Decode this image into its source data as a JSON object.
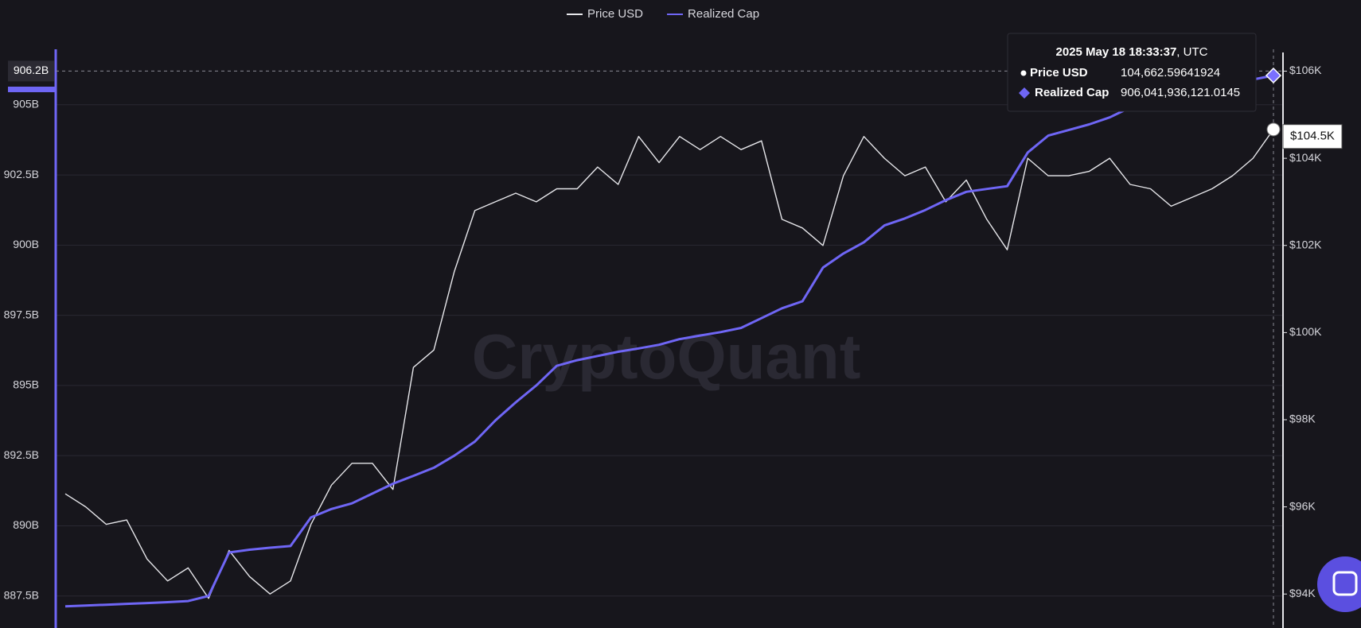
{
  "chart_data": {
    "type": "line",
    "watermark": "CryptoQuant",
    "ylim": [
      886.36,
      906.88
    ],
    "yticks": [
      {
        "value": 887.5,
        "label": "887.5B"
      },
      {
        "value": 890,
        "label": "890B"
      },
      {
        "value": 892.5,
        "label": "892.5B"
      },
      {
        "value": 895,
        "label": "895B"
      },
      {
        "value": 897.5,
        "label": "897.5B"
      },
      {
        "value": 900,
        "label": "900B"
      },
      {
        "value": 902.5,
        "label": "902.5B"
      },
      {
        "value": 905,
        "label": "905B"
      }
    ],
    "y2lim": [
      93220,
      106440
    ],
    "y2ticks": [
      {
        "value": 94000,
        "label": "$94K"
      },
      {
        "value": 96000,
        "label": "$96K"
      },
      {
        "value": 98000,
        "label": "$98K"
      },
      {
        "value": 100000,
        "label": "$100K"
      },
      {
        "value": 102000,
        "label": "$102K"
      },
      {
        "value": 104000,
        "label": "$104K"
      },
      {
        "value": 106000,
        "label": "$106K"
      }
    ],
    "grid": true,
    "legend": "top",
    "series": [
      {
        "name": "Price USD",
        "color": "#e6e6ea",
        "axis": "y2",
        "values": [
          96300,
          96000,
          95600,
          95700,
          94800,
          94300,
          94600,
          93900,
          95000,
          94400,
          94000,
          94300,
          95600,
          96500,
          97000,
          97000,
          96400,
          99200,
          99600,
          101400,
          102800,
          103000,
          103200,
          103000,
          103300,
          103300,
          103800,
          103400,
          104500,
          103900,
          104500,
          104200,
          104500,
          104200,
          104400,
          102600,
          102400,
          102000,
          103600,
          104500,
          104000,
          103600,
          103800,
          103000,
          103500,
          102600,
          101900,
          104000,
          103600,
          103600,
          103700,
          104000,
          103400,
          103300,
          102900,
          103100,
          103300,
          103600,
          104000,
          104662.59641924
        ]
      },
      {
        "name": "Realized Cap",
        "color": "#6f66f5",
        "values": [
          887.13,
          887.16,
          887.19,
          887.22,
          887.25,
          887.28,
          887.32,
          887.5,
          889.05,
          889.15,
          889.22,
          889.28,
          890.3,
          890.6,
          890.8,
          891.15,
          891.5,
          891.78,
          892.07,
          892.5,
          893.0,
          893.75,
          894.4,
          895.0,
          895.7,
          895.9,
          896.05,
          896.2,
          896.32,
          896.45,
          896.65,
          896.78,
          896.9,
          897.05,
          897.4,
          897.75,
          898.0,
          899.2,
          899.7,
          900.1,
          900.7,
          900.95,
          901.25,
          901.6,
          901.9,
          902.0,
          902.1,
          903.3,
          903.9,
          904.1,
          904.3,
          904.55,
          904.9,
          905.1,
          905.3,
          905.45,
          905.6,
          905.75,
          905.9,
          906.041936121
        ]
      }
    ],
    "crosshair": {
      "y": {
        "value": 906.2,
        "label": "906.2B"
      },
      "y2": {
        "value": 104500,
        "label": "$104.5K"
      }
    },
    "tooltip": {
      "date": "2025 May 18 18:33:37",
      "zone": ", UTC",
      "rows": [
        {
          "label": "Price USD",
          "value": "104,662.59641924"
        },
        {
          "label": "Realized Cap",
          "value": "906,041,936,121.0145"
        }
      ]
    }
  }
}
